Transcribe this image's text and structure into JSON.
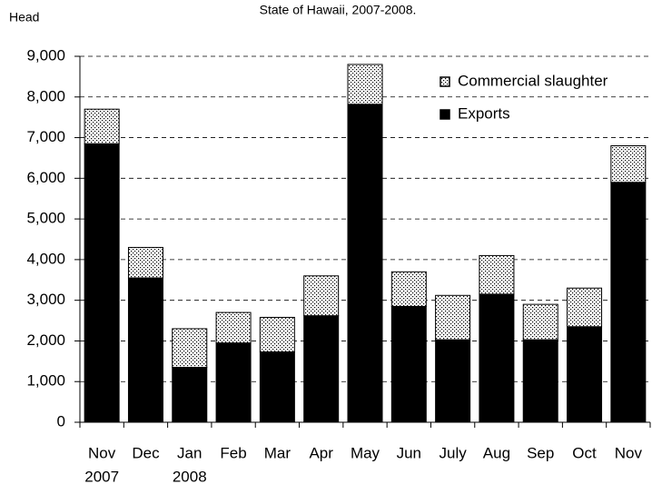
{
  "chart_data": {
    "type": "stacked_bar",
    "title": "State of Hawaii, 2007-2008.",
    "y_label": "Head",
    "categories": [
      "Nov",
      "Dec",
      "Jan",
      "Feb",
      "Mar",
      "Apr",
      "May",
      "Jun",
      "July",
      "Aug",
      "Sep",
      "Oct",
      "Nov"
    ],
    "category_years": [
      "2007",
      null,
      "2008",
      null,
      null,
      null,
      null,
      null,
      null,
      null,
      null,
      null,
      null
    ],
    "series": [
      {
        "name": "Exports",
        "color": "#000000",
        "values": [
          6850,
          3550,
          1350,
          1950,
          1730,
          2620,
          7820,
          2850,
          2030,
          3150,
          2030,
          2350,
          5900
        ]
      },
      {
        "name": "Commercial slaughter",
        "color": "#000000",
        "pattern": "dotted",
        "values": [
          850,
          750,
          950,
          750,
          850,
          980,
          980,
          850,
          1090,
          950,
          870,
          950,
          900
        ]
      }
    ],
    "ylim": [
      0,
      9000
    ],
    "yticks": [
      {
        "value": 0,
        "label": "0"
      },
      {
        "value": 1000,
        "label": "1,000"
      },
      {
        "value": 2000,
        "label": "2,000"
      },
      {
        "value": 3000,
        "label": "3,000"
      },
      {
        "value": 4000,
        "label": "4,000"
      },
      {
        "value": 5000,
        "label": "5,000"
      },
      {
        "value": 6000,
        "label": "6,000"
      },
      {
        "value": 7000,
        "label": "7,000"
      },
      {
        "value": 8000,
        "label": "8,000"
      },
      {
        "value": 9000,
        "label": "9,000"
      }
    ],
    "grid": true,
    "legend": "upper right"
  }
}
